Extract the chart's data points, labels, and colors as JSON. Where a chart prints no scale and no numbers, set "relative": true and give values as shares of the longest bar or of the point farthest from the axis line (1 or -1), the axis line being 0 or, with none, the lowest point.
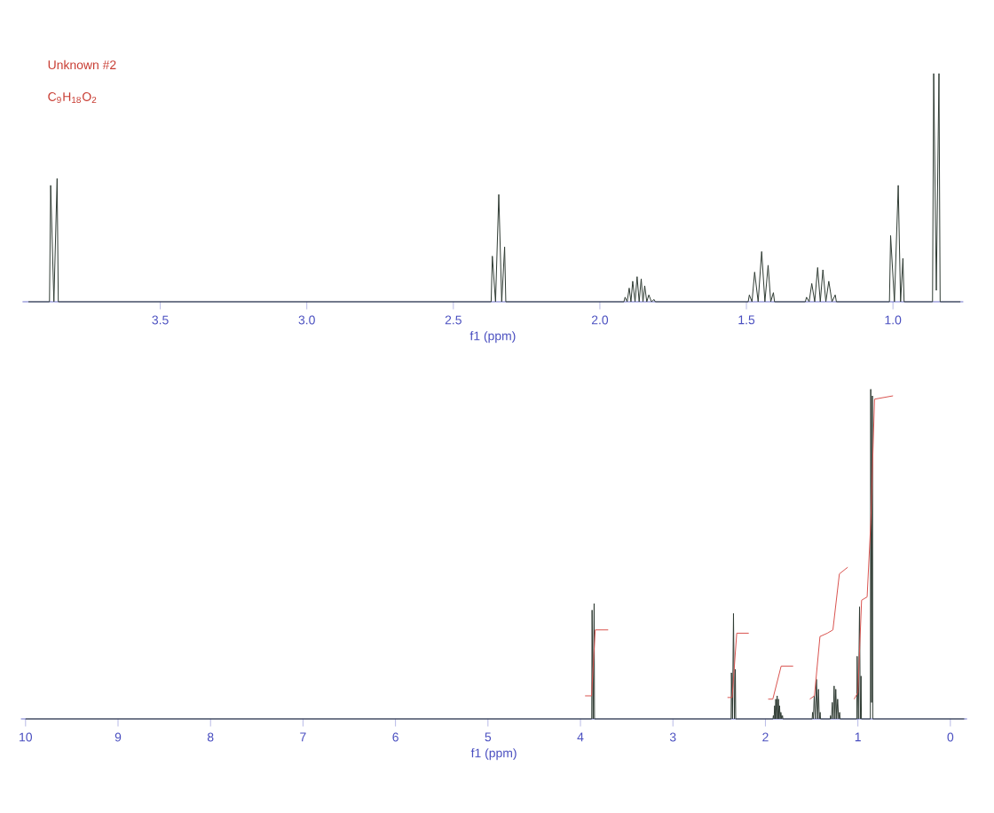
{
  "chart_data": [
    {
      "type": "line",
      "title": "Unknown #2",
      "subtitle": "C$_{9}$H$_{18}$O$_{2}$",
      "xlabel": "f1 (ppm)",
      "relative": true,
      "tick_labels": "x",
      "xlim": [
        3.97,
        0.76
      ],
      "xticks": [
        3.5,
        {
          "value": 3,
          "label": "3.0"
        },
        2.5,
        {
          "value": 2,
          "label": "2.0"
        },
        1.5,
        {
          "value": 1,
          "label": "1.0"
        }
      ],
      "series": [
        {
          "color": "#2f3b33",
          "x": [
            3.95,
            3.878,
            3.874,
            3.863,
            3.852,
            3.848,
            2.371,
            2.367,
            2.356,
            2.345,
            2.335,
            2.325,
            2.321,
            1.918,
            1.914,
            1.907,
            1.9,
            1.894,
            1.888,
            1.88,
            1.873,
            1.866,
            1.859,
            1.853,
            1.847,
            1.84,
            1.833,
            1.824,
            1.815,
            1.811,
            1.494,
            1.49,
            1.481,
            1.472,
            1.46,
            1.448,
            1.437,
            1.426,
            1.417,
            1.408,
            1.404,
            1.299,
            1.295,
            1.286,
            1.277,
            1.267,
            1.257,
            1.248,
            1.239,
            1.229,
            1.219,
            1.208,
            1.197,
            1.193,
            1.012,
            1.008,
            0.995,
            0.982,
            0.974,
            0.966,
            0.962,
            0.865,
            0.861,
            0.852,
            0.843,
            0.839,
            0.77
          ],
          "values": [
            0,
            0,
            0.51,
            0,
            0.54,
            0,
            0,
            0.2,
            0,
            0.47,
            0,
            0.24,
            0,
            0,
            0.02,
            0,
            0.06,
            0,
            0.09,
            0,
            0.11,
            0,
            0.1,
            0,
            0.07,
            0,
            0.03,
            0,
            0.01,
            0,
            0,
            0.03,
            0,
            0.13,
            0,
            0.22,
            0,
            0.16,
            0,
            0.04,
            0,
            0,
            0.02,
            0,
            0.08,
            0,
            0.15,
            0,
            0.14,
            0,
            0.09,
            0,
            0.03,
            0,
            0,
            0.29,
            0,
            0.51,
            0,
            0.19,
            0,
            0,
            1.0,
            0.05,
            1.0,
            0,
            0
          ]
        }
      ]
    },
    {
      "type": "line",
      "xlabel": "f1 (ppm)",
      "relative": true,
      "tick_labels": "x",
      "xlim": [
        10.05,
        -0.18
      ],
      "xticks": [
        10,
        9,
        8,
        7,
        6,
        5,
        4,
        3,
        2,
        1,
        0
      ],
      "series": [
        {
          "color": "#2f3b33",
          "x": [
            10.0,
            3.878,
            3.874,
            3.863,
            3.852,
            3.848,
            2.371,
            2.367,
            2.356,
            2.345,
            2.335,
            2.325,
            2.321,
            1.918,
            1.914,
            1.907,
            1.9,
            1.894,
            1.888,
            1.88,
            1.873,
            1.866,
            1.859,
            1.853,
            1.847,
            1.84,
            1.833,
            1.824,
            1.815,
            1.811,
            1.494,
            1.49,
            1.481,
            1.472,
            1.46,
            1.448,
            1.437,
            1.426,
            1.417,
            1.408,
            1.404,
            1.299,
            1.295,
            1.286,
            1.277,
            1.267,
            1.257,
            1.248,
            1.239,
            1.229,
            1.219,
            1.208,
            1.197,
            1.193,
            1.012,
            1.008,
            0.995,
            0.982,
            0.974,
            0.966,
            0.962,
            0.865,
            0.861,
            0.852,
            0.843,
            0.839,
            -0.15
          ],
          "values": [
            0,
            0,
            0.33,
            0,
            0.35,
            0,
            0,
            0.14,
            0,
            0.32,
            0,
            0.15,
            0,
            0,
            0.01,
            0,
            0.04,
            0,
            0.06,
            0,
            0.07,
            0,
            0.06,
            0,
            0.04,
            0,
            0.02,
            0,
            0.01,
            0,
            0,
            0.02,
            0,
            0.07,
            0,
            0.12,
            0,
            0.09,
            0,
            0.02,
            0,
            0,
            0.01,
            0,
            0.05,
            0,
            0.1,
            0,
            0.09,
            0,
            0.06,
            0,
            0.02,
            0,
            0,
            0.19,
            0,
            0.34,
            0,
            0.13,
            0,
            0,
            1.0,
            0.05,
            0.98,
            0,
            0
          ]
        },
        {
          "color": "#d9534f",
          "x": [
            3.95,
            3.88,
            3.84,
            3.7
          ],
          "values": [
            0.07,
            0.07,
            0.27,
            0.27
          ]
        },
        {
          "color": "#d9534f",
          "x": [
            2.41,
            2.36,
            2.31,
            2.18
          ],
          "values": [
            0.065,
            0.065,
            0.26,
            0.26
          ]
        },
        {
          "color": "#d9534f",
          "x": [
            1.97,
            1.92,
            1.83,
            1.7
          ],
          "values": [
            0.06,
            0.06,
            0.16,
            0.16
          ]
        },
        {
          "color": "#d9534f",
          "x": [
            1.52,
            1.47,
            1.41,
            1.33,
            1.27,
            1.2,
            1.11
          ],
          "values": [
            0.06,
            0.07,
            0.25,
            0.26,
            0.27,
            0.44,
            0.46
          ]
        },
        {
          "color": "#d9534f",
          "x": [
            1.04,
            1.0,
            0.96,
            0.9,
            0.86,
            0.82,
            0.62
          ],
          "values": [
            0.06,
            0.08,
            0.36,
            0.37,
            0.6,
            0.97,
            0.98
          ]
        }
      ]
    }
  ]
}
